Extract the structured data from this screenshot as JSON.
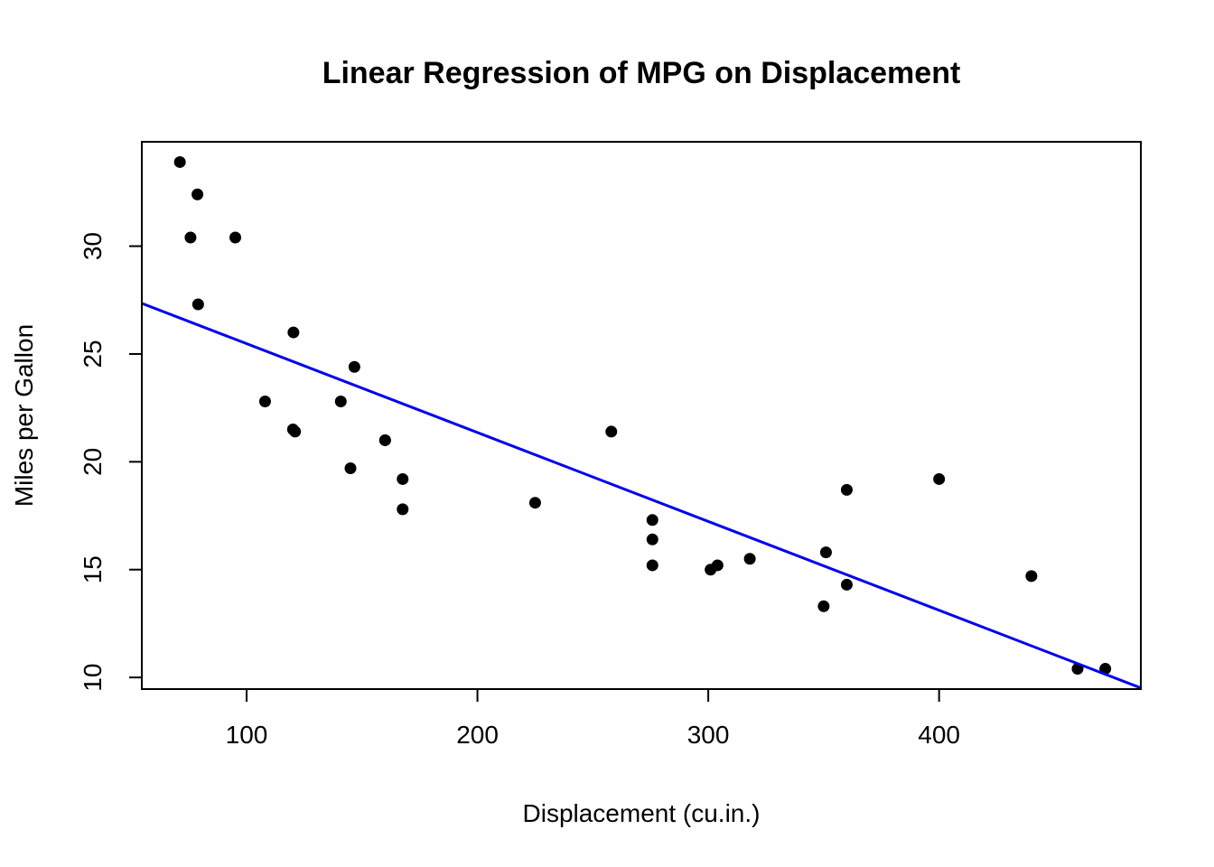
{
  "chart_data": {
    "type": "scatter",
    "title": "Linear Regression of MPG on Displacement",
    "xlabel": "Displacement (cu.in.)",
    "ylabel": "Miles per Gallon",
    "xlim": [
      54.6,
      487.4
    ],
    "ylim": [
      9.46,
      34.84
    ],
    "xticks": [
      100,
      200,
      300,
      400
    ],
    "yticks": [
      10,
      15,
      20,
      25,
      30
    ],
    "grid": false,
    "legend": "none",
    "series": [
      {
        "type": "scatter",
        "x": [
          160,
          160,
          108,
          258,
          360,
          225,
          360,
          146.7,
          140.8,
          167.6,
          167.6,
          275.8,
          275.8,
          275.8,
          472,
          460,
          440,
          78.7,
          75.7,
          71.1,
          120.1,
          318,
          304,
          350,
          400,
          79,
          120.3,
          95.1,
          351,
          145,
          301,
          121
        ],
        "y": [
          21.0,
          21.0,
          22.8,
          21.4,
          18.7,
          18.1,
          14.3,
          24.4,
          22.8,
          19.2,
          17.8,
          16.4,
          17.3,
          15.2,
          10.4,
          10.4,
          14.7,
          32.4,
          30.4,
          33.9,
          21.5,
          15.5,
          15.2,
          13.3,
          19.2,
          27.3,
          26.0,
          30.4,
          15.8,
          19.7,
          15.0,
          21.4
        ],
        "color": "#000000"
      }
    ],
    "regression_line": {
      "intercept": 29.5999,
      "slope": -0.041215,
      "color": "#0000ee"
    }
  }
}
